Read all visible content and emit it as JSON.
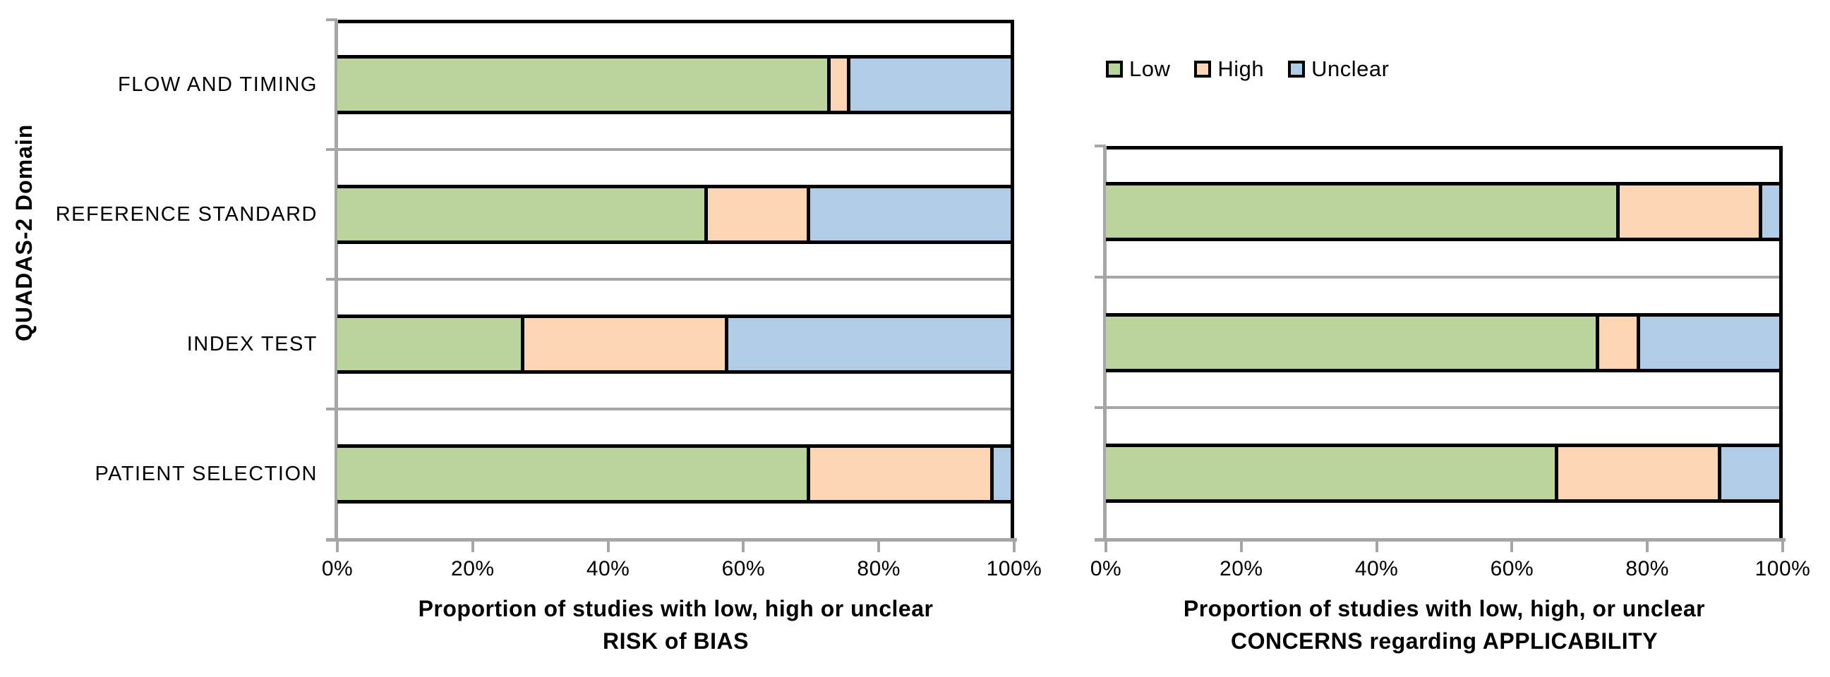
{
  "figure": {
    "y_axis_title": "QUADAS-2 Domain"
  },
  "legend": {
    "items": [
      {
        "label": "Low",
        "key": "low"
      },
      {
        "label": "High",
        "key": "high"
      },
      {
        "label": "Unclear",
        "key": "unclear"
      }
    ]
  },
  "colors": {
    "low": "#BBD49B",
    "high": "#FCD6B4",
    "unclear": "#B0CCE6",
    "bar_border": "#000000",
    "grid_line": "#A6A6A6",
    "axis_line": "#A6A6A6",
    "frame": "#000000",
    "text": "#000000",
    "background": "#FFFFFF"
  },
  "chart_data": [
    {
      "id": "risk_of_bias",
      "type": "bar",
      "stacked": true,
      "orientation": "horizontal",
      "xlabel_line1": "Proportion of studies with low, high or unclear",
      "xlabel_line2": "RISK of BIAS",
      "ylabel": "QUADAS-2 Domain",
      "xlim": [
        0,
        100
      ],
      "x_tick_labels": [
        "0%",
        "20%",
        "40%",
        "60%",
        "80%",
        "100%"
      ],
      "grid": true,
      "legend_position": "top-right-of-figure",
      "categories": [
        "FLOW AND TIMING",
        "REFERENCE STANDARD",
        "INDEX TEST",
        "PATIENT SELECTION"
      ],
      "series": [
        {
          "name": "Low",
          "values": [
            72.7,
            54.5,
            27.3,
            69.7
          ]
        },
        {
          "name": "High",
          "values": [
            3.0,
            15.2,
            30.3,
            27.3
          ]
        },
        {
          "name": "Unclear",
          "values": [
            24.2,
            30.3,
            42.4,
            3.0
          ]
        }
      ]
    },
    {
      "id": "applicability_concerns",
      "type": "bar",
      "stacked": true,
      "orientation": "horizontal",
      "xlabel_line1": "Proportion of studies with low, high, or unclear",
      "xlabel_line2": "CONCERNS regarding APPLICABILITY",
      "ylabel": "",
      "xlim": [
        0,
        100
      ],
      "x_tick_labels": [
        "0%",
        "20%",
        "40%",
        "60%",
        "80%",
        "100%"
      ],
      "grid": true,
      "categories": [
        "REFERENCE STANDARD",
        "INDEX TEST",
        "PATIENT SELECTION"
      ],
      "series": [
        {
          "name": "Low",
          "values": [
            75.8,
            72.7,
            66.7
          ]
        },
        {
          "name": "High",
          "values": [
            21.2,
            6.1,
            24.2
          ]
        },
        {
          "name": "Unclear",
          "values": [
            3.0,
            21.2,
            9.1
          ]
        }
      ]
    }
  ]
}
